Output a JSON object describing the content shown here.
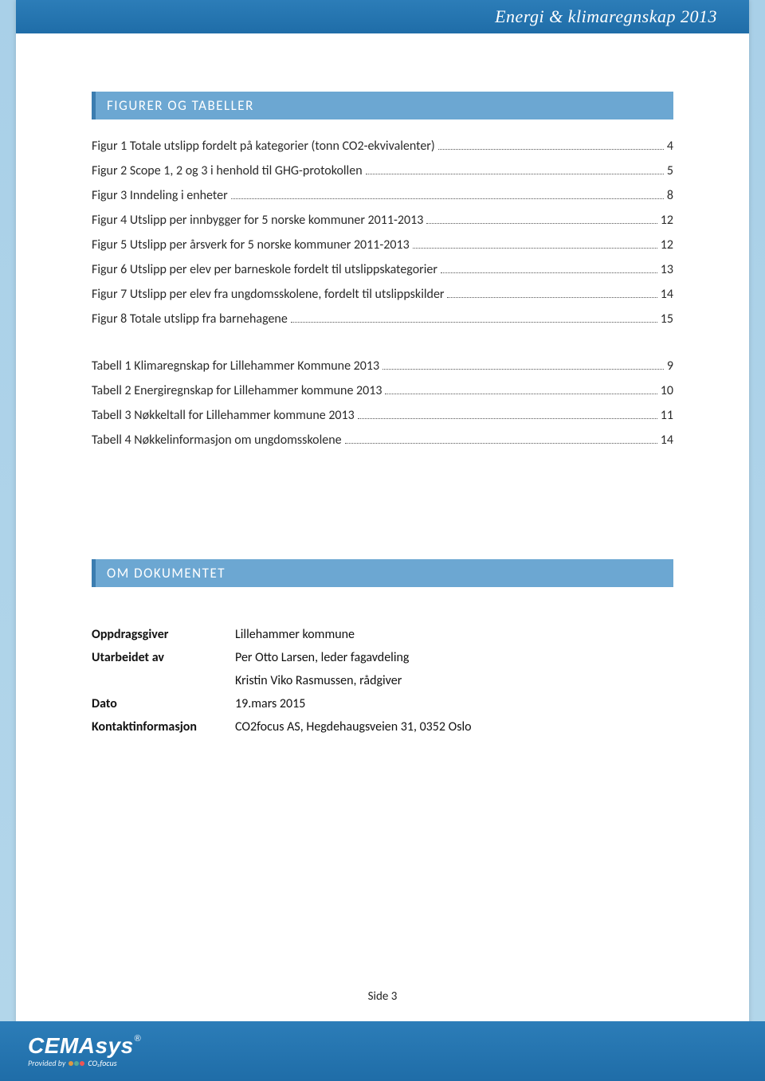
{
  "header": {
    "title": "Energi & klimaregnskap 2013"
  },
  "sections": {
    "figures": {
      "title": "FIGURER OG TABELLER"
    },
    "about": {
      "title": "OM DOKUMENTET"
    }
  },
  "toc": {
    "figures": [
      {
        "text": "Figur 1 Totale utslipp fordelt på kategorier (tonn CO2-ekvivalenter)",
        "page": "4"
      },
      {
        "text": "Figur 2 Scope 1, 2 og 3 i henhold til GHG-protokollen",
        "page": "5"
      },
      {
        "text": "Figur 3 Inndeling i enheter",
        "page": "8"
      },
      {
        "text": "Figur 4 Utslipp per innbygger for 5 norske kommuner 2011-2013",
        "page": "12"
      },
      {
        "text": "Figur 5 Utslipp per årsverk for 5 norske kommuner 2011-2013",
        "page": "12"
      },
      {
        "text": "Figur 6 Utslipp per elev per barneskole fordelt til utslippskategorier",
        "page": "13"
      },
      {
        "text": "Figur 7 Utslipp per elev fra ungdomsskolene, fordelt til utslippskilder",
        "page": "14"
      },
      {
        "text": "Figur 8 Totale utslipp fra barnehagene",
        "page": "15"
      }
    ],
    "tables": [
      {
        "text": "Tabell 1 Klimaregnskap for Lillehammer Kommune 2013",
        "page": "9"
      },
      {
        "text": "Tabell 2 Energiregnskap for Lillehammer kommune 2013",
        "page": "10"
      },
      {
        "text": "Tabell 3 Nøkkeltall for Lillehammer kommune 2013",
        "page": "11"
      },
      {
        "text": "Tabell 4 Nøkkelinformasjon om ungdomsskolene",
        "page": "14"
      }
    ]
  },
  "info": {
    "rows": [
      {
        "label": "Oppdragsgiver",
        "value": "Lillehammer kommune"
      },
      {
        "label": "Utarbeidet av",
        "value": "Per Otto Larsen, leder fagavdeling"
      },
      {
        "label": "",
        "value": "Kristin Viko Rasmussen, rådgiver"
      },
      {
        "label": "Dato",
        "value": "19.mars 2015"
      },
      {
        "label": "Kontaktinformasjon",
        "value": "CO2focus AS, Hegdehaugsveien 31, 0352 Oslo"
      }
    ]
  },
  "footer": {
    "page": "Side 3",
    "logo_main": "CEMAsys",
    "logo_provided": "Provided by",
    "logo_co2focus": "CO₂focus"
  },
  "style": {
    "header_bg": "#2575b0",
    "bar_bg": "#6ca7d2",
    "bar_border": "#3b7db0",
    "page_bg_gradient_top": "#a9d0e8",
    "text_color": "#2a2a2a"
  }
}
